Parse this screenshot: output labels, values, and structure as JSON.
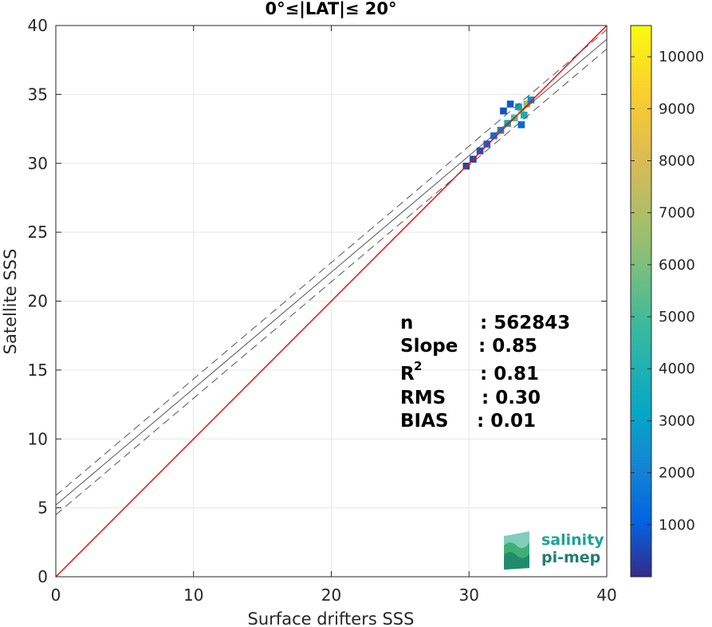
{
  "chart_data": {
    "type": "heatmap",
    "title": "0°≤|LAT|≤ 20°",
    "xlabel": "Surface drifters SSS",
    "ylabel": "Satellite SSS",
    "xlim": [
      0,
      40
    ],
    "ylim": [
      0,
      40
    ],
    "xticks": [
      "0",
      "10",
      "20",
      "30",
      "40"
    ],
    "yticks": [
      "0",
      "5",
      "10",
      "15",
      "20",
      "25",
      "30",
      "35",
      "40"
    ],
    "grid": true,
    "lines": [
      {
        "name": "identity",
        "color": "#ff0000",
        "style": "solid",
        "points": [
          [
            0,
            0
          ],
          [
            40,
            40
          ]
        ]
      },
      {
        "name": "regression",
        "color": "#555555",
        "style": "solid",
        "points": [
          [
            0,
            5.2
          ],
          [
            40,
            39.0
          ]
        ]
      },
      {
        "name": "upper-bound",
        "color": "#555555",
        "style": "dashed",
        "points": [
          [
            0,
            5.9
          ],
          [
            40,
            39.7
          ]
        ]
      },
      {
        "name": "lower-bound",
        "color": "#555555",
        "style": "dashed",
        "points": [
          [
            0,
            4.5
          ],
          [
            40,
            38.3
          ]
        ]
      }
    ],
    "density_cells": [
      {
        "x": 33.8,
        "y": 33.8,
        "count": 8500
      },
      {
        "x": 33.3,
        "y": 33.3,
        "count": 5200
      },
      {
        "x": 34.2,
        "y": 34.3,
        "count": 6500
      },
      {
        "x": 32.8,
        "y": 32.9,
        "count": 3600
      },
      {
        "x": 33.6,
        "y": 34.1,
        "count": 3000
      },
      {
        "x": 34.0,
        "y": 33.5,
        "count": 3800
      },
      {
        "x": 32.3,
        "y": 32.4,
        "count": 2200
      },
      {
        "x": 31.8,
        "y": 32.0,
        "count": 1500
      },
      {
        "x": 31.3,
        "y": 31.4,
        "count": 1100
      },
      {
        "x": 30.8,
        "y": 30.9,
        "count": 800
      },
      {
        "x": 30.3,
        "y": 30.3,
        "count": 600
      },
      {
        "x": 29.8,
        "y": 29.8,
        "count": 500
      },
      {
        "x": 33.0,
        "y": 34.3,
        "count": 900
      },
      {
        "x": 32.5,
        "y": 33.8,
        "count": 700
      },
      {
        "x": 34.5,
        "y": 34.6,
        "count": 2500
      },
      {
        "x": 33.8,
        "y": 32.8,
        "count": 1200
      }
    ],
    "colorbar": {
      "min": 0,
      "max": 10600,
      "ticks": [
        "1000",
        "2000",
        "3000",
        "4000",
        "5000",
        "6000",
        "7000",
        "8000",
        "9000",
        "10000"
      ]
    },
    "stats": {
      "n": {
        "label": "n",
        "value": ": 562843"
      },
      "slope": {
        "label": "Slope",
        "value": ": 0.85"
      },
      "r2": {
        "label": "R",
        "sup": "2",
        "value": ": 0.81"
      },
      "rms": {
        "label": "RMS",
        "value": ": 0.30"
      },
      "bias": {
        "label": "BIAS",
        "value": ": 0.01"
      }
    }
  },
  "logo": {
    "line1": "salinity",
    "line2": "pi-mep"
  }
}
